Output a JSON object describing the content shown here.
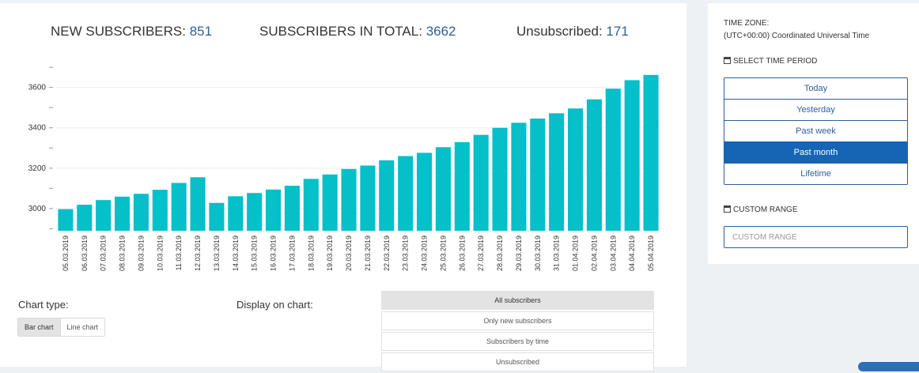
{
  "stats": {
    "new_label": "NEW SUBSCRIBERS:",
    "new_value": "851",
    "total_label": "SUBSCRIBERS IN TOTAL:",
    "total_value": "3662",
    "unsub_label": "Unsubscribed:",
    "unsub_value": "171"
  },
  "chart_data": {
    "type": "bar",
    "categories": [
      "05.03.2019",
      "06.03.2019",
      "07.03.2019",
      "08.03.2019",
      "09.03.2019",
      "10.03.2019",
      "11.03.2019",
      "12.03.2019",
      "13.03.2019",
      "14.03.2019",
      "15.03.2019",
      "16.03.2019",
      "17.03.2019",
      "18.03.2019",
      "19.03.2019",
      "20.03.2019",
      "21.03.2019",
      "22.03.2019",
      "23.03.2019",
      "24.03.2019",
      "25.03.2019",
      "26.03.2019",
      "27.03.2019",
      "28.03.2019",
      "29.03.2019",
      "30.03.2019",
      "31.03.2019",
      "01.04.2019",
      "02.04.2019",
      "03.04.2019",
      "04.04.2019",
      "05.04.2019"
    ],
    "values": [
      2997,
      3019,
      3042,
      3059,
      3073,
      3093,
      3127,
      3155,
      3028,
      3061,
      3077,
      3094,
      3113,
      3147,
      3169,
      3196,
      3213,
      3239,
      3260,
      3276,
      3304,
      3329,
      3365,
      3400,
      3425,
      3446,
      3472,
      3496,
      3541,
      3594,
      3636,
      3662
    ],
    "yticks": [
      3000,
      3200,
      3400,
      3600
    ],
    "ylim": [
      2890,
      3720
    ],
    "grid": true,
    "color": "#05bfc9"
  },
  "controls": {
    "chart_type_label": "Chart type:",
    "bar_chart": "Bar chart",
    "line_chart": "Line chart",
    "display_label": "Display on chart:",
    "display_options": [
      "All subscribers",
      "Only new subscribers",
      "Subscribers by time",
      "Unsubscribed"
    ]
  },
  "sidebar": {
    "timezone_label": "TIME ZONE:",
    "timezone_value": "(UTC+00:00) Coordinated Universal Time",
    "period_label": "SELECT TIME PERIOD",
    "periods": [
      "Today",
      "Yesterday",
      "Past week",
      "Past month",
      "Lifetime"
    ],
    "custom_label": "CUSTOM RANGE",
    "custom_placeholder": "CUSTOM RANGE"
  },
  "colors": {
    "accent": "#1565b4",
    "value_text": "#2d5f9a",
    "bar": "#05bfc9"
  }
}
